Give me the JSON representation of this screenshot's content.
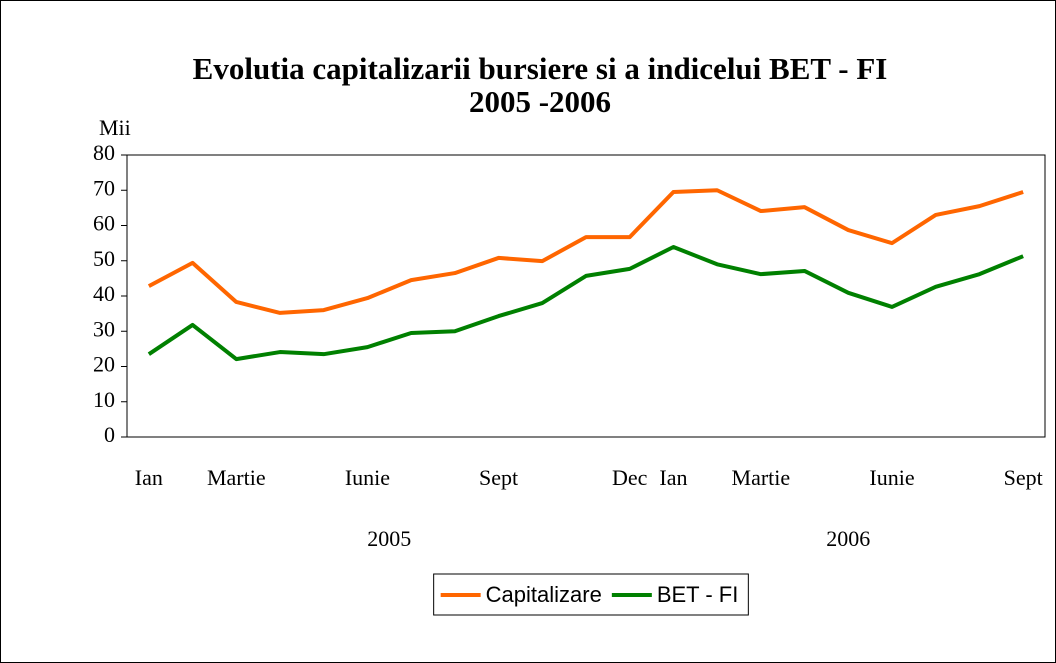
{
  "chart_data": {
    "type": "line",
    "title": "Evolutia capitalizarii bursiere si a indicelui BET - FI",
    "subtitle": "2005 -2006",
    "y_label": "Mii",
    "categories": [
      "Ian",
      null,
      "Martie",
      null,
      null,
      "Iunie",
      null,
      null,
      "Sept",
      null,
      null,
      "Dec",
      "Ian",
      null,
      "Martie",
      null,
      null,
      "Iunie",
      null,
      null,
      "Sept"
    ],
    "x_groups": [
      "2005",
      "2006"
    ],
    "series": [
      {
        "name": "Capitalizare",
        "color": "#ff6600",
        "values": [
          42.8,
          49.4,
          38.3,
          35.2,
          36,
          39.4,
          44.5,
          46.5,
          50.8,
          49.9,
          56.7,
          56.7,
          69.5,
          70,
          64.1,
          65.2,
          58.7,
          55,
          63,
          65.5,
          69.5
        ]
      },
      {
        "name": "BET - FI",
        "color": "#008000",
        "values": [
          23.5,
          31.8,
          22.1,
          24.1,
          23.5,
          25.5,
          29.5,
          30,
          34.3,
          38,
          45.7,
          47.7,
          53.9,
          49,
          46.2,
          47.1,
          40.9,
          36.9,
          42.6,
          46.2,
          51.3
        ]
      }
    ],
    "ylim": [
      0,
      80
    ],
    "yticks": [
      0,
      10,
      20,
      30,
      40,
      50,
      60,
      70,
      80
    ],
    "grid": false,
    "legend": "bottom"
  }
}
